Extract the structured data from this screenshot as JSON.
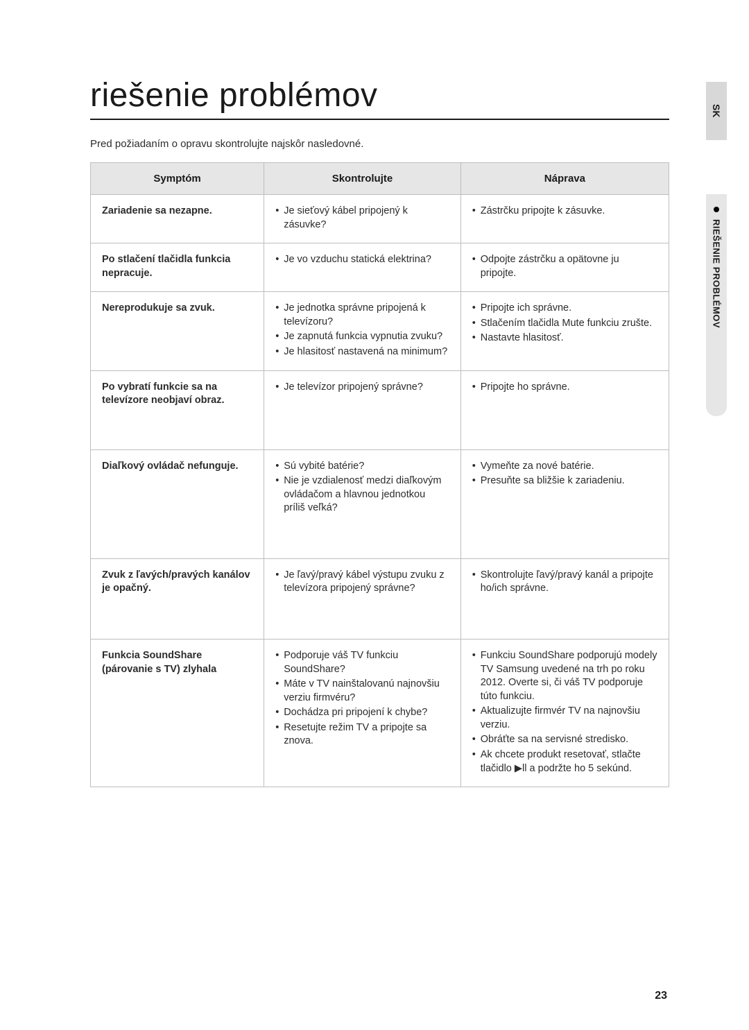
{
  "tabs": {
    "lang": "SK",
    "section": "RIEŠENIE PROBLÉMOV"
  },
  "title": "riešenie problémov",
  "intro": "Pred požiadaním o opravu skontrolujte najskôr nasledovné.",
  "columns": [
    "Symptóm",
    "Skontrolujte",
    "Náprava"
  ],
  "rows": [
    {
      "symptom": "Zariadenie sa nezapne.",
      "check": [
        "Je sieťový kábel pripojený k zásuvke?"
      ],
      "fix": [
        "Zástrčku pripojte k zásuvke."
      ]
    },
    {
      "symptom": "Po stlačení tlačidla funkcia nepracuje.",
      "check": [
        "Je vo vzduchu statická elektrina?"
      ],
      "fix": [
        "Odpojte zástrčku a opätovne ju pripojte."
      ]
    },
    {
      "symptom": "Nereprodukuje sa zvuk.",
      "check": [
        "Je jednotka správne pripojená k televízoru?",
        "Je zapnutá funkcia vypnutia zvuku?",
        "Je hlasitosť nastavená na minimum?"
      ],
      "fix": [
        "Pripojte ich správne.",
        "Stlačením tlačidla Mute funkciu zrušte.",
        "Nastavte hlasitosť."
      ]
    },
    {
      "symptom": "Po vybratí funkcie sa na televízore neobjaví obraz.",
      "check": [
        "Je televízor pripojený správne?"
      ],
      "fix": [
        "Pripojte ho správne."
      ],
      "tall": true
    },
    {
      "symptom": "Diaľkový ovládač nefunguje.",
      "check": [
        "Sú vybité batérie?",
        "Nie je vzdialenosť medzi diaľkovým ovládačom a hlavnou jednotkou príliš veľká?"
      ],
      "fix": [
        "Vymeňte za nové batérie.",
        "Presuňte sa bližšie k zariadeniu."
      ],
      "tall": true
    },
    {
      "symptom": "Zvuk z ľavých/pravých kanálov je opačný.",
      "check": [
        "Je ľavý/pravý kábel výstupu zvuku z televízora pripojený správne?"
      ],
      "fix": [
        "Skontrolujte ľavý/pravý kanál a pripojte ho/ich správne."
      ],
      "tall": true
    },
    {
      "symptom": "Funkcia SoundShare (párovanie s TV) zlyhala",
      "check": [
        "Podporuje váš TV funkciu SoundShare?",
        "Máte v TV nainštalovanú najnovšiu verziu firmvéru?",
        "Dochádza pri pripojení k chybe?",
        "Resetujte režim TV a pripojte sa znova."
      ],
      "fix": [
        "Funkciu SoundShare podporujú modely TV Samsung uvedené na trh po roku 2012. Overte si, či váš TV podporuje túto funkciu.",
        "Aktualizujte firmvér TV na najnovšiu verziu.",
        "Obráťte sa na servisné stredisko.",
        "Ak chcete produkt resetovať, stlačte tlačidlo ▶∥ a podržte ho 5 sekúnd."
      ]
    }
  ],
  "pagenum": "23"
}
